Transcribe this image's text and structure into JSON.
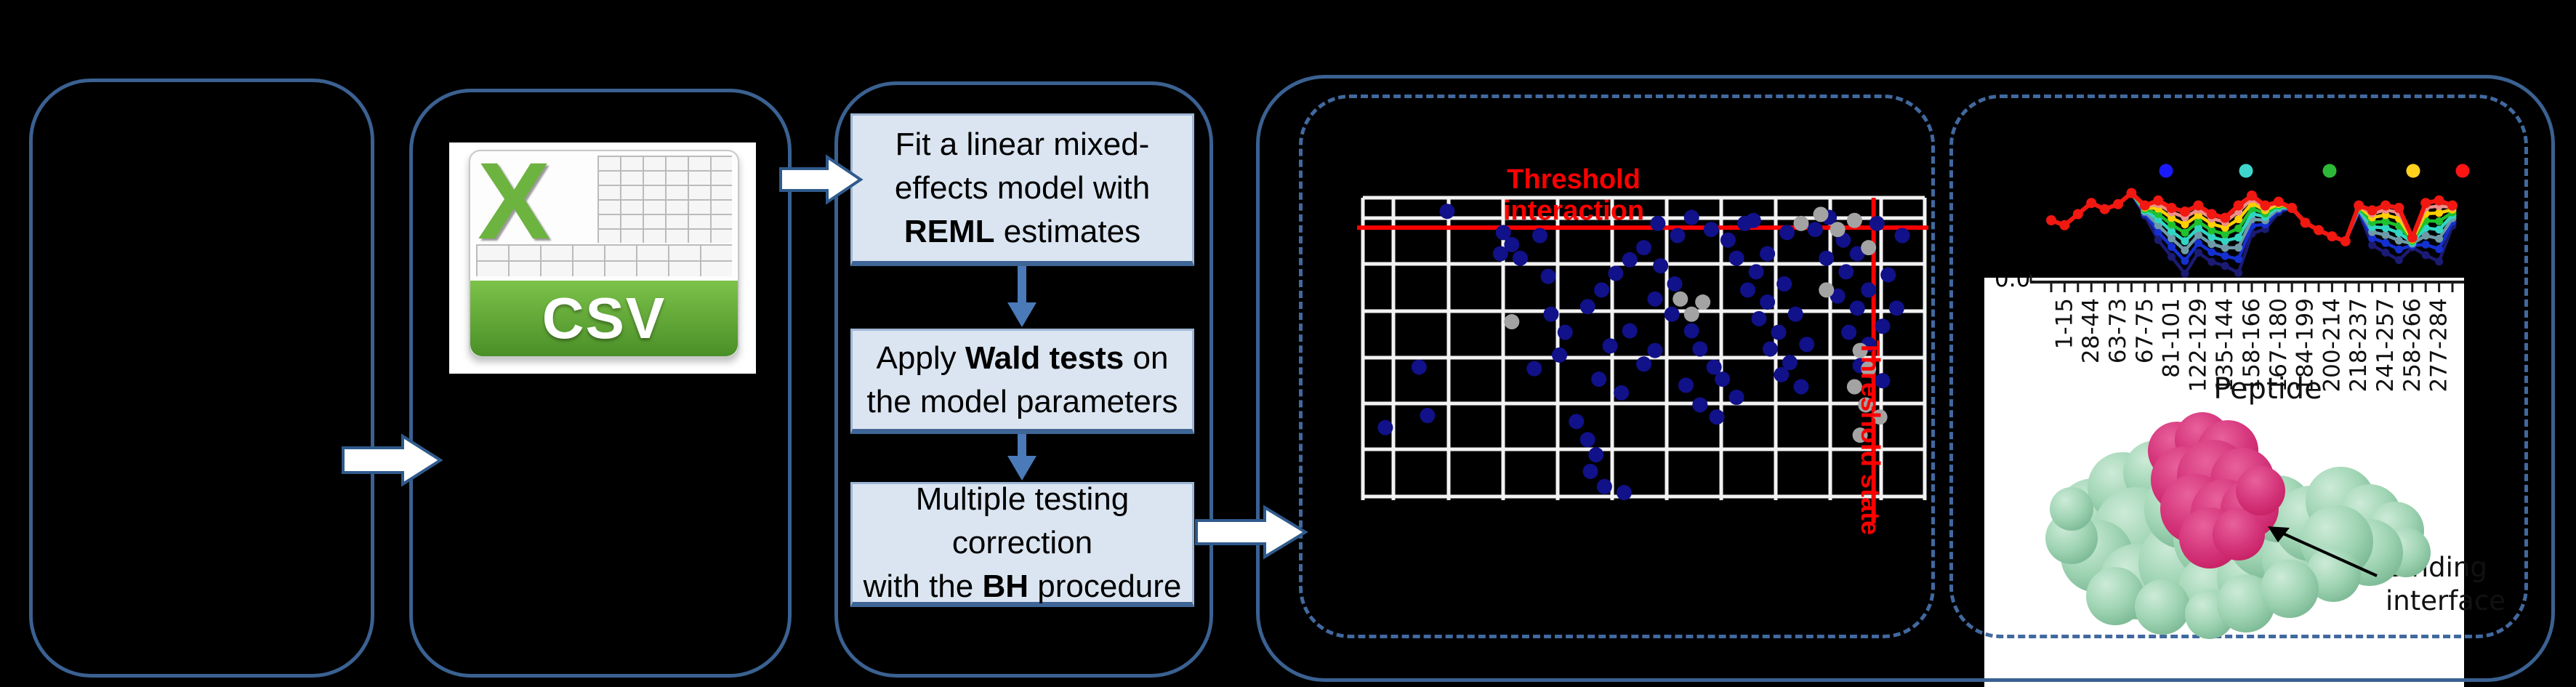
{
  "colors": {
    "background": "#000000",
    "box_border": "#3a6191",
    "dashed_border": "#41699f",
    "step_fill": "#dbe5f1",
    "step_border": "#9fb6d6",
    "flow_arrow_blue": "#4a7ab8",
    "block_arrow_fill": "#ffffff",
    "block_arrow_edge": "#2f5a8c",
    "threshold_red": "#ff0000",
    "scatter_navy": "#11118a",
    "scatter_gray": "#a3a3a3",
    "grid_white": "#f2f2f2",
    "csv_green": "#6db33f",
    "protein_green": "#9fd4b3",
    "protein_green_dark": "#77b591",
    "protein_pink": "#c2185b",
    "protein_pink_light": "#d4347a"
  },
  "panel_csv": {
    "x_letter": "X",
    "banner_label": "CSV"
  },
  "panel_stats": {
    "steps": [
      {
        "lines": [
          [
            {
              "t": "Fit a linear mixed-"
            }
          ],
          [
            {
              "t": "effects model with"
            }
          ],
          [
            {
              "t": "REML",
              "b": true
            },
            {
              "t": " estimates"
            }
          ]
        ]
      },
      {
        "lines": [
          [
            {
              "t": "Apply "
            },
            {
              "t": "Wald tests",
              "b": true
            },
            {
              "t": " on"
            }
          ],
          [
            {
              "t": "the model parameters"
            }
          ]
        ]
      },
      {
        "lines": [
          [
            {
              "t": "Multiple testing"
            }
          ],
          [
            {
              "t": "correction"
            }
          ],
          [
            {
              "t": "with the "
            },
            {
              "t": "BH",
              "b": true
            },
            {
              "t": " procedure"
            }
          ]
        ]
      }
    ]
  },
  "panel_results": {
    "threshold_interaction_label": "Threshold interaction",
    "threshold_state_label": "Threshold state"
  },
  "panel_interpret": {
    "y_tick": "0.0",
    "xlabel": "Peptide",
    "binding_line1": "Binding",
    "binding_line2": "interface"
  },
  "chart_data": [
    {
      "id": "threshold-scatter",
      "type": "scatter",
      "title": "Threshold interaction",
      "grid": true,
      "threshold_interaction_y": 0.099,
      "threshold_state_x": 0.909,
      "series": [
        {
          "name": "significant-peptides",
          "color": "#11118a",
          "points": [
            [
              0.15,
              0.045
            ],
            [
              0.04,
              0.76
            ],
            [
              0.115,
              0.72
            ],
            [
              0.1,
              0.56
            ],
            [
              0.25,
              0.115
            ],
            [
              0.265,
              0.155
            ],
            [
              0.28,
              0.2
            ],
            [
              0.245,
              0.185
            ],
            [
              0.315,
              0.125
            ],
            [
              0.33,
              0.26
            ],
            [
              0.35,
              0.52
            ],
            [
              0.305,
              0.565
            ],
            [
              0.38,
              0.74
            ],
            [
              0.4,
              0.8
            ],
            [
              0.415,
              0.85
            ],
            [
              0.405,
              0.905
            ],
            [
              0.43,
              0.955
            ],
            [
              0.465,
              0.975
            ],
            [
              0.42,
              0.6
            ],
            [
              0.46,
              0.645
            ],
            [
              0.44,
              0.49
            ],
            [
              0.475,
              0.44
            ],
            [
              0.5,
              0.55
            ],
            [
              0.52,
              0.505
            ],
            [
              0.4,
              0.36
            ],
            [
              0.425,
              0.305
            ],
            [
              0.45,
              0.25
            ],
            [
              0.475,
              0.205
            ],
            [
              0.5,
              0.165
            ],
            [
              0.53,
              0.225
            ],
            [
              0.555,
              0.285
            ],
            [
              0.52,
              0.335
            ],
            [
              0.55,
              0.385
            ],
            [
              0.585,
              0.44
            ],
            [
              0.6,
              0.5
            ],
            [
              0.625,
              0.56
            ],
            [
              0.575,
              0.62
            ],
            [
              0.6,
              0.685
            ],
            [
              0.63,
              0.725
            ],
            [
              0.665,
              0.66
            ],
            [
              0.64,
              0.6
            ],
            [
              0.525,
              0.085
            ],
            [
              0.56,
              0.125
            ],
            [
              0.585,
              0.065
            ],
            [
              0.62,
              0.105
            ],
            [
              0.65,
              0.14
            ],
            [
              0.68,
              0.085
            ],
            [
              0.665,
              0.2
            ],
            [
              0.7,
              0.245
            ],
            [
              0.72,
              0.185
            ],
            [
              0.685,
              0.305
            ],
            [
              0.72,
              0.345
            ],
            [
              0.75,
              0.285
            ],
            [
              0.705,
              0.4
            ],
            [
              0.74,
              0.445
            ],
            [
              0.77,
              0.385
            ],
            [
              0.725,
              0.5
            ],
            [
              0.76,
              0.545
            ],
            [
              0.79,
              0.485
            ],
            [
              0.745,
              0.585
            ],
            [
              0.78,
              0.625
            ],
            [
              0.805,
              0.105
            ],
            [
              0.83,
              0.065
            ],
            [
              0.855,
              0.14
            ],
            [
              0.825,
              0.2
            ],
            [
              0.86,
              0.245
            ],
            [
              0.88,
              0.185
            ],
            [
              0.845,
              0.325
            ],
            [
              0.88,
              0.365
            ],
            [
              0.9,
              0.305
            ],
            [
              0.865,
              0.445
            ],
            [
              0.9,
              0.485
            ],
            [
              0.925,
              0.425
            ],
            [
              0.95,
              0.365
            ],
            [
              0.935,
              0.255
            ],
            [
              0.96,
              0.125
            ],
            [
              0.915,
              0.085
            ],
            [
              0.885,
              0.555
            ],
            [
              0.925,
              0.605
            ],
            [
              0.36,
              0.445
            ],
            [
              0.335,
              0.385
            ],
            [
              0.695,
              0.075
            ],
            [
              0.755,
              0.115
            ]
          ]
        },
        {
          "name": "non-significant-peptides",
          "color": "#a3a3a3",
          "points": [
            [
              0.78,
              0.085
            ],
            [
              0.815,
              0.055
            ],
            [
              0.845,
              0.105
            ],
            [
              0.875,
              0.075
            ],
            [
              0.9,
              0.165
            ],
            [
              0.565,
              0.335
            ],
            [
              0.585,
              0.385
            ],
            [
              0.605,
              0.345
            ],
            [
              0.885,
              0.505
            ],
            [
              0.9,
              0.565
            ],
            [
              0.875,
              0.625
            ],
            [
              0.895,
              0.685
            ],
            [
              0.92,
              0.725
            ],
            [
              0.885,
              0.785
            ],
            [
              0.825,
              0.305
            ],
            [
              0.265,
              0.41
            ]
          ]
        }
      ],
      "annotations": [
        "Threshold interaction",
        "Threshold state"
      ]
    },
    {
      "id": "uptake-line",
      "type": "line",
      "xlabel": "Peptide",
      "visible_y_tick": "0.0",
      "categories": [
        "1-15",
        "28-44",
        "63-73",
        "67-75",
        "81-101",
        "122-129",
        "135-144",
        "158-166",
        "167-180",
        "184-199",
        "200-214",
        "218-237",
        "241-257",
        "258-266",
        "277-284"
      ],
      "legend_colors": [
        "#1a1aff",
        "#3fd6cd",
        "#2eb838",
        "#ffd21e",
        "#ff1414"
      ],
      "series": [
        {
          "name": "t1",
          "color": "#1b1b74",
          "values": [
            0.5,
            0.46,
            0.55,
            0.64,
            0.59,
            0.63,
            0.72,
            0.538,
            0.341,
            0.204,
            0.068,
            0.238,
            0.163,
            0.131,
            0.074,
            0.392,
            0.429,
            0.564,
            0.6,
            0.48,
            0.42,
            0.37,
            0.33,
            0.565,
            0.299,
            0.238,
            0.178,
            0.281,
            0.218,
            0.166,
            0.456
          ]
        },
        {
          "name": "t2",
          "color": "#1430d0",
          "values": [
            0.5,
            0.46,
            0.55,
            0.64,
            0.59,
            0.63,
            0.72,
            0.555,
            0.406,
            0.285,
            0.171,
            0.316,
            0.242,
            0.211,
            0.186,
            0.455,
            0.468,
            0.582,
            0.6,
            0.48,
            0.42,
            0.37,
            0.33,
            0.577,
            0.357,
            0.316,
            0.264,
            0.297,
            0.304,
            0.267,
            0.49
          ]
        },
        {
          "name": "t3",
          "color": "#6e9aa8",
          "values": [
            0.5,
            0.46,
            0.55,
            0.64,
            0.59,
            0.63,
            0.72,
            0.569,
            0.46,
            0.353,
            0.257,
            0.381,
            0.308,
            0.277,
            0.279,
            0.508,
            0.501,
            0.596,
            0.6,
            0.48,
            0.42,
            0.37,
            0.33,
            0.586,
            0.405,
            0.381,
            0.336,
            0.311,
            0.376,
            0.351,
            0.518
          ]
        },
        {
          "name": "t4",
          "color": "#30d6c3",
          "values": [
            0.5,
            0.46,
            0.55,
            0.64,
            0.59,
            0.63,
            0.72,
            0.581,
            0.508,
            0.411,
            0.331,
            0.438,
            0.365,
            0.334,
            0.36,
            0.553,
            0.529,
            0.609,
            0.6,
            0.48,
            0.42,
            0.37,
            0.33,
            0.594,
            0.446,
            0.438,
            0.398,
            0.322,
            0.438,
            0.424,
            0.542
          ]
        },
        {
          "name": "t5",
          "color": "#1fc12e",
          "values": [
            0.5,
            0.46,
            0.55,
            0.64,
            0.59,
            0.63,
            0.72,
            0.592,
            0.551,
            0.465,
            0.399,
            0.49,
            0.418,
            0.387,
            0.434,
            0.595,
            0.555,
            0.621,
            0.6,
            0.48,
            0.42,
            0.37,
            0.33,
            0.601,
            0.484,
            0.49,
            0.456,
            0.333,
            0.496,
            0.492,
            0.564
          ]
        },
        {
          "name": "t6",
          "color": "#ffcf00",
          "values": [
            0.5,
            0.46,
            0.55,
            0.64,
            0.59,
            0.63,
            0.72,
            0.603,
            0.595,
            0.519,
            0.467,
            0.542,
            0.471,
            0.44,
            0.508,
            0.637,
            0.581,
            0.632,
            0.6,
            0.48,
            0.42,
            0.37,
            0.33,
            0.609,
            0.523,
            0.542,
            0.514,
            0.344,
            0.554,
            0.559,
            0.587
          ]
        },
        {
          "name": "t7",
          "color": "#ee8f8b",
          "values": [
            0.5,
            0.46,
            0.55,
            0.64,
            0.59,
            0.63,
            0.72,
            0.612,
            0.631,
            0.564,
            0.524,
            0.585,
            0.515,
            0.485,
            0.57,
            0.672,
            0.603,
            0.642,
            0.6,
            0.48,
            0.42,
            0.37,
            0.33,
            0.615,
            0.554,
            0.585,
            0.562,
            0.353,
            0.602,
            0.615,
            0.605
          ]
        },
        {
          "name": "t8",
          "color": "#f01810",
          "values": [
            0.5,
            0.46,
            0.55,
            0.64,
            0.59,
            0.63,
            0.72,
            0.62,
            0.66,
            0.6,
            0.57,
            0.62,
            0.55,
            0.52,
            0.62,
            0.7,
            0.62,
            0.65,
            0.6,
            0.48,
            0.42,
            0.37,
            0.33,
            0.62,
            0.58,
            0.62,
            0.6,
            0.36,
            0.64,
            0.66,
            0.62
          ]
        }
      ]
    }
  ]
}
